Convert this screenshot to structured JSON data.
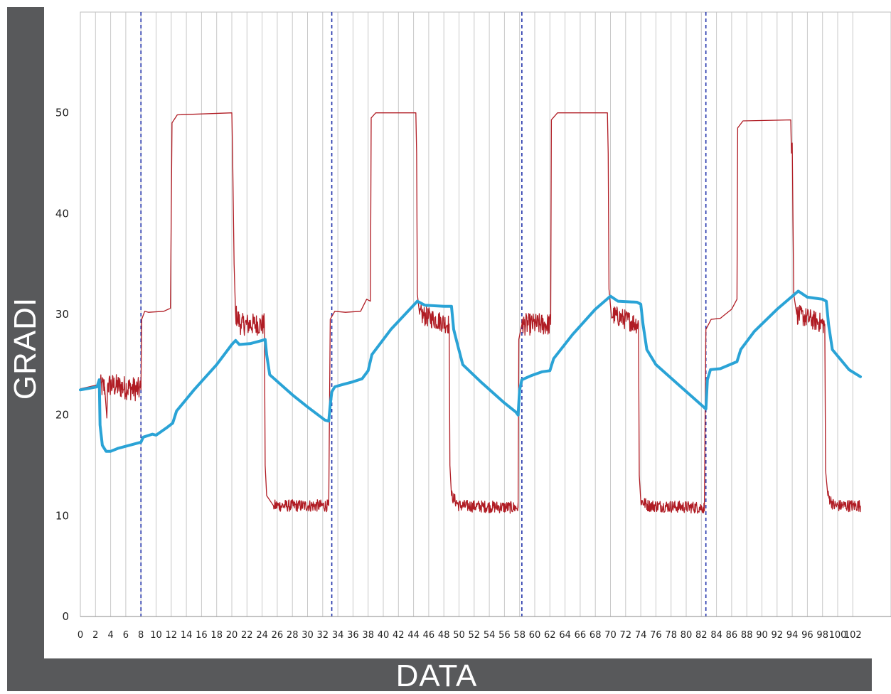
{
  "chart_data": {
    "type": "line",
    "xlabel": "DATA",
    "ylabel": "GRADI",
    "xlim": [
      0,
      103
    ],
    "ylim": [
      0,
      60
    ],
    "x_ticks": [
      0,
      2,
      4,
      6,
      8,
      10,
      12,
      14,
      16,
      18,
      20,
      22,
      24,
      26,
      28,
      30,
      32,
      34,
      36,
      38,
      40,
      42,
      44,
      46,
      48,
      50,
      52,
      54,
      56,
      58,
      60,
      62,
      64,
      66,
      68,
      70,
      72,
      74,
      76,
      78,
      80,
      82,
      84,
      86,
      88,
      90,
      92,
      94,
      96,
      98,
      100,
      102
    ],
    "x_tick_labels": [
      "0",
      "2",
      "4",
      "6",
      "8",
      "10",
      "12",
      "14",
      "16",
      "18",
      "20",
      "22",
      "24",
      "26",
      "28",
      "30",
      "32",
      "34",
      "36",
      "38",
      "40",
      "42",
      "44",
      "46",
      "48",
      "50",
      "52",
      "54",
      "56",
      "58",
      "60",
      "62",
      "64",
      "66",
      "68",
      "70",
      "72",
      "74",
      "76",
      "78",
      "80",
      "82",
      "84",
      "86",
      "88",
      "90",
      "92",
      "94",
      "96",
      "98",
      "100",
      "102"
    ],
    "y_ticks": [
      0,
      10,
      20,
      30,
      40,
      50
    ],
    "grid": "vertical lines every 2 units",
    "cycle_markers": [
      8,
      33.2,
      58.3,
      82.6
    ],
    "colors": {
      "red": "#b01c24",
      "blue": "#2aa3d6",
      "grid": "#c8c8c8",
      "marker": "#2233aa"
    },
    "series": [
      {
        "color": "red",
        "noisy_intervals": [
          [
            2.5,
            8,
            1.2
          ],
          [
            20.5,
            24.5,
            1.1
          ],
          [
            24.8,
            32.8,
            0.6
          ],
          [
            44.5,
            48.7,
            1.0
          ],
          [
            48.8,
            57.8,
            0.6
          ],
          [
            58.3,
            62.1,
            1.1
          ],
          [
            69.5,
            73.8,
            1.0
          ],
          [
            73.8,
            82.4,
            0.6
          ],
          [
            83.3,
            84.4,
            0.4
          ],
          [
            94.5,
            98.3,
            1.0
          ],
          [
            98.5,
            103,
            0.6
          ]
        ],
        "points": [
          [
            0,
            22.6
          ],
          [
            2.3,
            23.0
          ],
          [
            2.5,
            22.8
          ],
          [
            3.2,
            22.8
          ],
          [
            3.5,
            19.7
          ],
          [
            3.6,
            23.0
          ],
          [
            8.0,
            22.5
          ],
          [
            8.1,
            29.5
          ],
          [
            8.5,
            30.3
          ],
          [
            9.0,
            30.2
          ],
          [
            11.0,
            30.3
          ],
          [
            11.9,
            30.6
          ],
          [
            12.1,
            49.0
          ],
          [
            12.8,
            49.8
          ],
          [
            20.0,
            50.0
          ],
          [
            20.1,
            46.0
          ],
          [
            20.3,
            35.0
          ],
          [
            20.5,
            30.0
          ],
          [
            21.2,
            29.0
          ],
          [
            24.3,
            29.0
          ],
          [
            24.4,
            15.0
          ],
          [
            24.6,
            12.0
          ],
          [
            25.5,
            11.0
          ],
          [
            32.8,
            11.0
          ],
          [
            33.0,
            29.5
          ],
          [
            33.6,
            30.3
          ],
          [
            35.0,
            30.2
          ],
          [
            37.0,
            30.3
          ],
          [
            37.8,
            31.5
          ],
          [
            38.3,
            31.3
          ],
          [
            38.4,
            49.5
          ],
          [
            39.0,
            50.0
          ],
          [
            44.3,
            50.0
          ],
          [
            44.4,
            46.0
          ],
          [
            44.5,
            32.0
          ],
          [
            44.8,
            30.0
          ],
          [
            48.7,
            29.0
          ],
          [
            48.8,
            15.0
          ],
          [
            49.0,
            12.0
          ],
          [
            50.0,
            11.0
          ],
          [
            57.8,
            10.8
          ],
          [
            57.9,
            27.5
          ],
          [
            58.3,
            29.0
          ],
          [
            62.1,
            29.0
          ],
          [
            62.2,
            49.3
          ],
          [
            63.0,
            50.0
          ],
          [
            69.6,
            50.0
          ],
          [
            69.7,
            46.0
          ],
          [
            69.8,
            32.5
          ],
          [
            70.1,
            30.0
          ],
          [
            73.7,
            29.0
          ],
          [
            73.8,
            14.0
          ],
          [
            74.0,
            11.5
          ],
          [
            75.0,
            11.0
          ],
          [
            82.4,
            10.8
          ],
          [
            82.5,
            20.0
          ],
          [
            82.6,
            28.5
          ],
          [
            83.3,
            29.5
          ],
          [
            84.5,
            29.6
          ],
          [
            86.0,
            30.5
          ],
          [
            86.7,
            31.5
          ],
          [
            86.8,
            48.5
          ],
          [
            87.5,
            49.2
          ],
          [
            93.8,
            49.3
          ],
          [
            93.9,
            46.0
          ],
          [
            94.0,
            47.0
          ],
          [
            94.2,
            32.0
          ],
          [
            94.6,
            30.0
          ],
          [
            98.3,
            29.0
          ],
          [
            98.4,
            14.5
          ],
          [
            98.7,
            12.0
          ],
          [
            99.5,
            11.0
          ],
          [
            103,
            11.0
          ]
        ]
      },
      {
        "color": "blue",
        "points": [
          [
            0,
            22.5
          ],
          [
            1.5,
            22.7
          ],
          [
            2.2,
            22.8
          ],
          [
            2.5,
            23.5
          ],
          [
            2.6,
            19.0
          ],
          [
            2.9,
            17.0
          ],
          [
            3.4,
            16.4
          ],
          [
            4.0,
            16.4
          ],
          [
            5.0,
            16.7
          ],
          [
            7.5,
            17.2
          ],
          [
            8.0,
            17.3
          ],
          [
            8.3,
            17.8
          ],
          [
            9.5,
            18.1
          ],
          [
            10.0,
            18.0
          ],
          [
            11.5,
            18.8
          ],
          [
            12.2,
            19.2
          ],
          [
            12.7,
            20.4
          ],
          [
            15.0,
            22.5
          ],
          [
            18.0,
            25.0
          ],
          [
            20.0,
            27.0
          ],
          [
            20.5,
            27.4
          ],
          [
            21.0,
            27.0
          ],
          [
            22.5,
            27.1
          ],
          [
            24.0,
            27.4
          ],
          [
            24.4,
            27.5
          ],
          [
            24.6,
            26.0
          ],
          [
            25.0,
            24.0
          ],
          [
            28.0,
            22.0
          ],
          [
            30.0,
            20.8
          ],
          [
            32.3,
            19.5
          ],
          [
            32.8,
            19.4
          ],
          [
            33.0,
            21.0
          ],
          [
            33.2,
            22.3
          ],
          [
            33.6,
            22.8
          ],
          [
            34.5,
            23.0
          ],
          [
            36.0,
            23.3
          ],
          [
            37.2,
            23.6
          ],
          [
            38.0,
            24.4
          ],
          [
            38.5,
            26.0
          ],
          [
            41.0,
            28.5
          ],
          [
            44.5,
            31.3
          ],
          [
            45.5,
            30.9
          ],
          [
            48.0,
            30.8
          ],
          [
            49.0,
            30.8
          ],
          [
            49.3,
            28.5
          ],
          [
            49.8,
            27.0
          ],
          [
            50.5,
            25.0
          ],
          [
            53.0,
            23.2
          ],
          [
            56.0,
            21.2
          ],
          [
            57.5,
            20.3
          ],
          [
            57.8,
            20.0
          ],
          [
            58.0,
            22.5
          ],
          [
            58.3,
            23.5
          ],
          [
            59.5,
            23.9
          ],
          [
            61.0,
            24.3
          ],
          [
            62.0,
            24.4
          ],
          [
            62.5,
            25.6
          ],
          [
            65.0,
            28.0
          ],
          [
            68.0,
            30.5
          ],
          [
            70.0,
            31.8
          ],
          [
            71.0,
            31.3
          ],
          [
            73.5,
            31.2
          ],
          [
            74.0,
            31.0
          ],
          [
            74.3,
            29.0
          ],
          [
            74.8,
            26.5
          ],
          [
            76.0,
            25.0
          ],
          [
            79.0,
            23.0
          ],
          [
            82.0,
            21.0
          ],
          [
            82.6,
            20.6
          ],
          [
            82.8,
            23.5
          ],
          [
            83.2,
            24.5
          ],
          [
            84.5,
            24.6
          ],
          [
            86.7,
            25.3
          ],
          [
            87.2,
            26.5
          ],
          [
            89.0,
            28.3
          ],
          [
            92.0,
            30.5
          ],
          [
            94.8,
            32.3
          ],
          [
            96.0,
            31.7
          ],
          [
            98.0,
            31.5
          ],
          [
            98.5,
            31.3
          ],
          [
            98.8,
            29.0
          ],
          [
            99.3,
            26.5
          ],
          [
            101.5,
            24.5
          ],
          [
            103,
            23.8
          ]
        ]
      }
    ]
  }
}
